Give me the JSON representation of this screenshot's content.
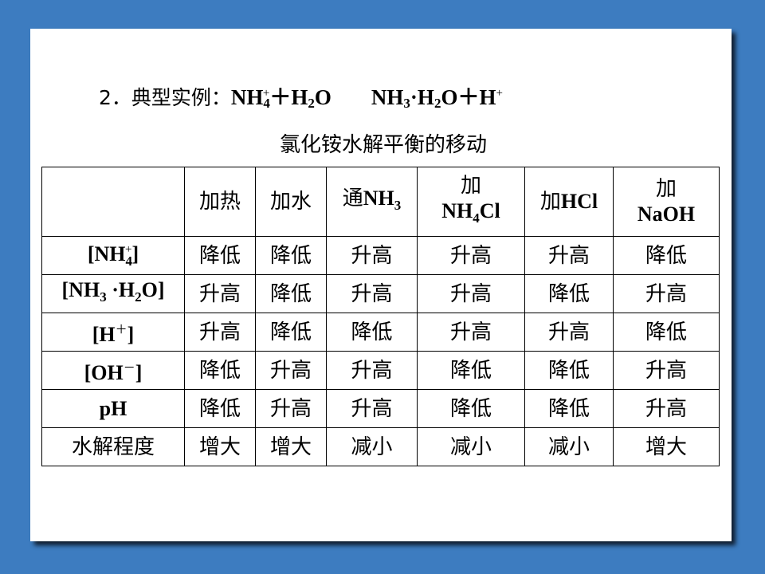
{
  "title": {
    "prefix": "2．典型实例：",
    "eq_left": "NH",
    "eq_left_sub": "4",
    "eq_left_sup": "+",
    "eq_plus": "＋H",
    "eq_h2o_sub": "2",
    "eq_o": "O",
    "eq_right": "NH",
    "eq_right_sub": "3",
    "eq_dot": "·H",
    "eq_right_h2o_sub": "2",
    "eq_right_rest": "O＋H",
    "eq_right_sup": "+"
  },
  "caption": "氯化铵水解平衡的移动",
  "table": {
    "columns": [
      {
        "label": "加热"
      },
      {
        "label": "加水"
      },
      {
        "label_cn": "通",
        "label_formula": "NH",
        "label_sub": "3"
      },
      {
        "label_cn": "加",
        "label_formula": "NH",
        "label_sub": "4",
        "label_rest": "Cl"
      },
      {
        "label_cn": "加",
        "label_formula": "HCl"
      },
      {
        "label_cn": "加",
        "label_formula": "NaOH"
      }
    ],
    "rows": [
      {
        "label": "[NH",
        "label_sub": "4",
        "label_sup": "+",
        "label_end": "]",
        "cells": [
          "降低",
          "降低",
          "升高",
          "升高",
          "升高",
          "降低"
        ]
      },
      {
        "label": "[NH",
        "label_sub": "3",
        "label_mid": " ·H",
        "label_sub2": "2",
        "label_end": "O]",
        "cells": [
          "升高",
          "降低",
          "升高",
          "升高",
          "降低",
          "升高"
        ]
      },
      {
        "label": "[H",
        "label_sup": "＋",
        "label_end": "]",
        "cells": [
          "升高",
          "降低",
          "降低",
          "升高",
          "升高",
          "降低"
        ]
      },
      {
        "label": "[OH",
        "label_sup": "－",
        "label_end": "]",
        "cells": [
          "降低",
          "升高",
          "升高",
          "降低",
          "降低",
          "升高"
        ]
      },
      {
        "label": "pH",
        "cells": [
          "降低",
          "升高",
          "升高",
          "降低",
          "降低",
          "升高"
        ]
      },
      {
        "label": "水解程度",
        "cells": [
          "增大",
          "增大",
          "减小",
          "减小",
          "减小",
          "增大"
        ]
      }
    ]
  },
  "colors": {
    "background": "#3d7cc0",
    "slide": "#ffffff",
    "shadow": "#0f1d2e"
  }
}
